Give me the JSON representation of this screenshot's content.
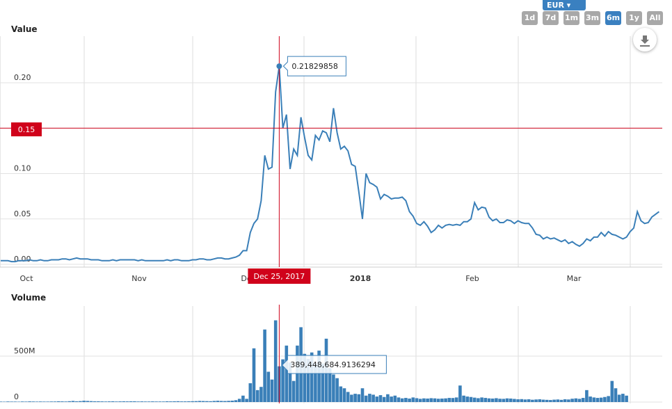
{
  "currency": {
    "selected": "EUR"
  },
  "range_buttons": [
    {
      "label": "1d"
    },
    {
      "label": "7d"
    },
    {
      "label": "1m"
    },
    {
      "label": "3m"
    },
    {
      "label": "6m",
      "active": true
    },
    {
      "label": "1y"
    },
    {
      "label": "All"
    }
  ],
  "download_icon": "download-icon",
  "colors": {
    "series": "#3a7fb8",
    "crosshair": "#d0021b"
  },
  "chart_data": [
    {
      "type": "line",
      "title": "Value",
      "ylim": [
        0,
        0.25
      ],
      "yticks": [
        "0.00",
        "0.05",
        "0.10",
        "0.15",
        "0.20"
      ],
      "xticks": [
        "Oct",
        "Nov",
        "Dec",
        "2018",
        "Feb",
        "Mar"
      ],
      "crosshair": {
        "value_label": "0.15",
        "date_label": "Dec 25, 2017",
        "tooltip": "0.21829858",
        "index": 77
      },
      "values": [
        0.004,
        0.004,
        0.004,
        0.003,
        0.003,
        0.004,
        0.004,
        0.004,
        0.005,
        0.004,
        0.004,
        0.005,
        0.004,
        0.004,
        0.005,
        0.005,
        0.005,
        0.006,
        0.006,
        0.005,
        0.006,
        0.007,
        0.006,
        0.006,
        0.006,
        0.005,
        0.005,
        0.005,
        0.004,
        0.004,
        0.004,
        0.005,
        0.004,
        0.005,
        0.005,
        0.005,
        0.005,
        0.005,
        0.004,
        0.005,
        0.004,
        0.004,
        0.004,
        0.004,
        0.004,
        0.004,
        0.005,
        0.004,
        0.005,
        0.005,
        0.004,
        0.004,
        0.004,
        0.005,
        0.005,
        0.006,
        0.006,
        0.005,
        0.005,
        0.006,
        0.007,
        0.007,
        0.006,
        0.006,
        0.007,
        0.008,
        0.01,
        0.015,
        0.015,
        0.035,
        0.045,
        0.05,
        0.07,
        0.12,
        0.105,
        0.107,
        0.19,
        0.2183,
        0.15,
        0.165,
        0.105,
        0.127,
        0.12,
        0.162,
        0.14,
        0.12,
        0.115,
        0.142,
        0.137,
        0.147,
        0.145,
        0.135,
        0.172,
        0.145,
        0.127,
        0.13,
        0.125,
        0.11,
        0.108,
        0.08,
        0.05,
        0.1,
        0.09,
        0.088,
        0.085,
        0.072,
        0.077,
        0.075,
        0.072,
        0.073,
        0.073,
        0.074,
        0.07,
        0.058,
        0.053,
        0.045,
        0.043,
        0.047,
        0.042,
        0.035,
        0.038,
        0.043,
        0.04,
        0.043,
        0.044,
        0.043,
        0.044,
        0.043,
        0.047,
        0.047,
        0.05,
        0.068,
        0.06,
        0.063,
        0.062,
        0.052,
        0.048,
        0.05,
        0.046,
        0.046,
        0.049,
        0.048,
        0.045,
        0.048,
        0.046,
        0.045,
        0.045,
        0.04,
        0.033,
        0.032,
        0.028,
        0.03,
        0.028,
        0.029,
        0.027,
        0.025,
        0.027,
        0.023,
        0.025,
        0.022,
        0.02,
        0.023,
        0.028,
        0.026,
        0.03,
        0.03,
        0.035,
        0.031,
        0.036,
        0.033,
        0.032,
        0.03,
        0.028,
        0.03,
        0.036,
        0.04,
        0.058,
        0.048,
        0.045,
        0.046,
        0.052,
        0.055,
        0.058
      ]
    },
    {
      "type": "bar",
      "title": "Volume",
      "ylim": [
        0,
        900000000
      ],
      "yticks": [
        "0",
        "500M"
      ],
      "tooltip": "389,448,684.9136294",
      "values": [
        5,
        4,
        6,
        5,
        5,
        4,
        6,
        5,
        7,
        6,
        5,
        6,
        5,
        5,
        6,
        6,
        8,
        7,
        6,
        9,
        12,
        8,
        10,
        14,
        12,
        10,
        8,
        8,
        7,
        6,
        7,
        8,
        6,
        7,
        8,
        7,
        8,
        8,
        6,
        7,
        6,
        6,
        7,
        6,
        6,
        6,
        8,
        7,
        8,
        9,
        7,
        7,
        8,
        9,
        10,
        12,
        11,
        10,
        9,
        12,
        14,
        12,
        11,
        13,
        15,
        20,
        35,
        70,
        35,
        205,
        585,
        130,
        165,
        790,
        330,
        245,
        890,
        389,
        465,
        615,
        430,
        230,
        615,
        815,
        525,
        470,
        540,
        420,
        560,
        420,
        690,
        370,
        300,
        260,
        170,
        150,
        110,
        80,
        90,
        85,
        150,
        70,
        90,
        80,
        60,
        75,
        55,
        85,
        60,
        70,
        50,
        40,
        45,
        38,
        50,
        42,
        35,
        40,
        38,
        42,
        40,
        36,
        38,
        40,
        45,
        44,
        50,
        180,
        70,
        60,
        55,
        48,
        42,
        50,
        45,
        40,
        38,
        42,
        36,
        35,
        40,
        38,
        34,
        30,
        32,
        28,
        30,
        25,
        28,
        30,
        26,
        24,
        22,
        26,
        28,
        24,
        30,
        28,
        36,
        40,
        35,
        45,
        130,
        60,
        50,
        45,
        48,
        55,
        65,
        230,
        150,
        80,
        90,
        70
      ]
    }
  ]
}
